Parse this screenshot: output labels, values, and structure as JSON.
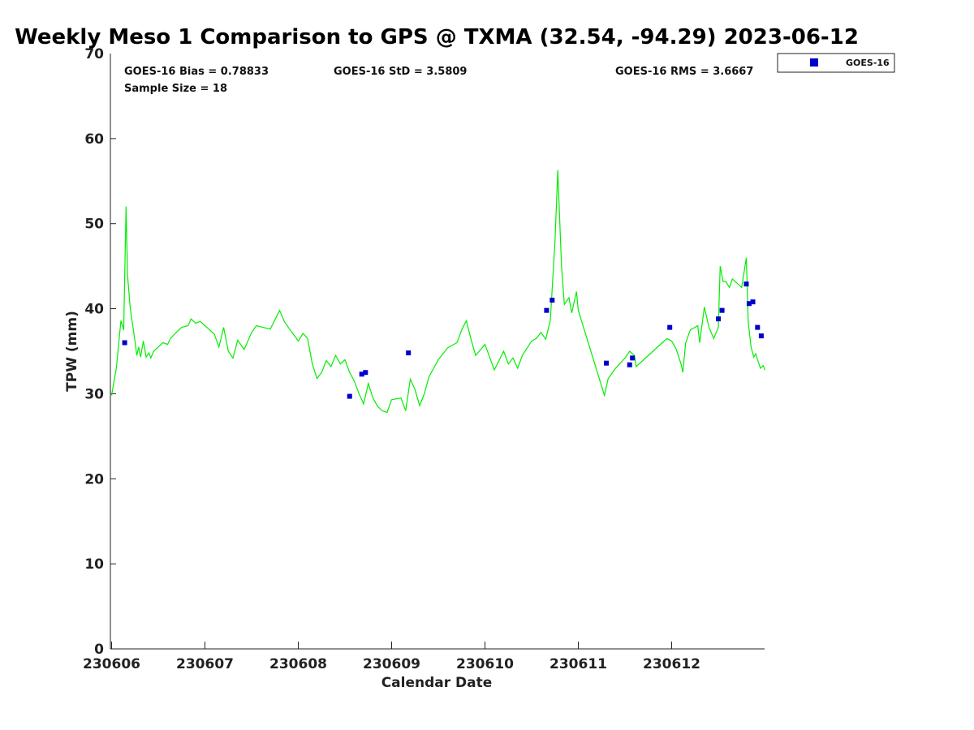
{
  "chart_data": {
    "type": "scatter",
    "title": "Weekly Meso 1 Comparison to GPS @ TXMA (32.54, -94.29) 2023-06-12",
    "xlabel": "Calendar Date",
    "ylabel": "TPW (mm)",
    "xlim": [
      230606,
      230613
    ],
    "ylim": [
      0,
      70
    ],
    "x_ticks": [
      "230606",
      "230607",
      "230608",
      "230609",
      "230610",
      "230611",
      "230612"
    ],
    "y_ticks": [
      "0",
      "10",
      "20",
      "30",
      "40",
      "50",
      "60",
      "70"
    ],
    "grid": false,
    "legend_position": "top-right",
    "stats": {
      "bias": "GOES-16 Bias = 0.78833",
      "std": "GOES-16 StD = 3.5809",
      "rms": "GOES-16 RMS = 3.6667",
      "sample": "Sample Size = 18"
    },
    "series": [
      {
        "name": "GOES-16",
        "kind": "scatter",
        "marker": "square",
        "color": "#0000cc",
        "points": [
          [
            0.14,
            36.0
          ],
          [
            2.55,
            29.7
          ],
          [
            2.68,
            32.3
          ],
          [
            2.72,
            32.5
          ],
          [
            3.18,
            34.8
          ],
          [
            4.66,
            39.8
          ],
          [
            4.72,
            41.0
          ],
          [
            5.3,
            33.6
          ],
          [
            5.55,
            33.4
          ],
          [
            5.58,
            34.2
          ],
          [
            5.98,
            37.8
          ],
          [
            6.5,
            38.8
          ],
          [
            6.54,
            39.8
          ],
          [
            6.8,
            42.9
          ],
          [
            6.83,
            40.6
          ],
          [
            6.87,
            40.8
          ],
          [
            6.92,
            37.8
          ],
          [
            6.96,
            36.8
          ]
        ]
      },
      {
        "kind": "line",
        "color": "#00ee00",
        "points": [
          [
            0.0,
            29.8
          ],
          [
            0.05,
            33.0
          ],
          [
            0.1,
            38.6
          ],
          [
            0.13,
            37.5
          ],
          [
            0.155,
            52.0
          ],
          [
            0.17,
            44.0
          ],
          [
            0.2,
            40.0
          ],
          [
            0.24,
            37.0
          ],
          [
            0.27,
            34.5
          ],
          [
            0.29,
            35.5
          ],
          [
            0.31,
            34.3
          ],
          [
            0.34,
            36.2
          ],
          [
            0.37,
            34.3
          ],
          [
            0.4,
            34.8
          ],
          [
            0.42,
            34.2
          ],
          [
            0.45,
            35.0
          ],
          [
            0.5,
            35.5
          ],
          [
            0.55,
            36.0
          ],
          [
            0.6,
            35.8
          ],
          [
            0.63,
            36.5
          ],
          [
            0.7,
            37.3
          ],
          [
            0.75,
            37.8
          ],
          [
            0.82,
            38.0
          ],
          [
            0.85,
            38.8
          ],
          [
            0.9,
            38.3
          ],
          [
            0.95,
            38.5
          ],
          [
            1.0,
            38.0
          ],
          [
            1.1,
            37.0
          ],
          [
            1.15,
            35.5
          ],
          [
            1.2,
            37.8
          ],
          [
            1.25,
            35.0
          ],
          [
            1.3,
            34.2
          ],
          [
            1.35,
            36.3
          ],
          [
            1.42,
            35.2
          ],
          [
            1.5,
            37.2
          ],
          [
            1.55,
            38.0
          ],
          [
            1.7,
            37.6
          ],
          [
            1.8,
            39.8
          ],
          [
            1.85,
            38.5
          ],
          [
            1.9,
            37.7
          ],
          [
            2.0,
            36.2
          ],
          [
            2.05,
            37.1
          ],
          [
            2.1,
            36.5
          ],
          [
            2.15,
            33.5
          ],
          [
            2.2,
            31.8
          ],
          [
            2.25,
            32.5
          ],
          [
            2.3,
            33.9
          ],
          [
            2.35,
            33.2
          ],
          [
            2.4,
            34.5
          ],
          [
            2.45,
            33.5
          ],
          [
            2.5,
            34.0
          ],
          [
            2.55,
            32.5
          ],
          [
            2.6,
            31.5
          ],
          [
            2.65,
            30.0
          ],
          [
            2.7,
            28.8
          ],
          [
            2.75,
            31.2
          ],
          [
            2.8,
            29.5
          ],
          [
            2.85,
            28.5
          ],
          [
            2.9,
            28.0
          ],
          [
            2.95,
            27.8
          ],
          [
            3.0,
            29.3
          ],
          [
            3.1,
            29.5
          ],
          [
            3.15,
            28.0
          ],
          [
            3.2,
            31.7
          ],
          [
            3.25,
            30.5
          ],
          [
            3.3,
            28.6
          ],
          [
            3.35,
            30.0
          ],
          [
            3.4,
            32.0
          ],
          [
            3.45,
            33.0
          ],
          [
            3.5,
            34.0
          ],
          [
            3.6,
            35.4
          ],
          [
            3.7,
            36.0
          ],
          [
            3.75,
            37.5
          ],
          [
            3.8,
            38.6
          ],
          [
            3.85,
            36.4
          ],
          [
            3.9,
            34.5
          ],
          [
            4.0,
            35.8
          ],
          [
            4.1,
            32.8
          ],
          [
            4.2,
            35.0
          ],
          [
            4.25,
            33.5
          ],
          [
            4.3,
            34.2
          ],
          [
            4.35,
            33.0
          ],
          [
            4.4,
            34.5
          ],
          [
            4.5,
            36.2
          ],
          [
            4.55,
            36.5
          ],
          [
            4.6,
            37.2
          ],
          [
            4.65,
            36.4
          ],
          [
            4.7,
            38.6
          ],
          [
            4.75,
            48.0
          ],
          [
            4.78,
            56.3
          ],
          [
            4.82,
            45.0
          ],
          [
            4.85,
            40.5
          ],
          [
            4.9,
            41.3
          ],
          [
            4.93,
            39.5
          ],
          [
            4.98,
            42.0
          ],
          [
            5.0,
            39.8
          ],
          [
            5.28,
            29.8
          ],
          [
            5.32,
            31.8
          ],
          [
            5.4,
            33.0
          ],
          [
            5.5,
            34.2
          ],
          [
            5.55,
            35.0
          ],
          [
            5.6,
            34.5
          ],
          [
            5.62,
            33.2
          ],
          [
            5.7,
            34.0
          ],
          [
            5.8,
            35.0
          ],
          [
            5.9,
            36.0
          ],
          [
            5.95,
            36.5
          ],
          [
            6.0,
            36.2
          ],
          [
            6.05,
            35.2
          ],
          [
            6.1,
            33.5
          ],
          [
            6.12,
            32.5
          ],
          [
            6.15,
            36.0
          ],
          [
            6.2,
            37.5
          ],
          [
            6.28,
            38.0
          ],
          [
            6.3,
            36.0
          ],
          [
            6.35,
            40.2
          ],
          [
            6.4,
            37.8
          ],
          [
            6.45,
            36.5
          ],
          [
            6.5,
            37.8
          ],
          [
            6.52,
            45.0
          ],
          [
            6.55,
            43.2
          ],
          [
            6.58,
            43.2
          ],
          [
            6.62,
            42.5
          ],
          [
            6.65,
            43.5
          ],
          [
            6.75,
            42.5
          ],
          [
            6.8,
            46.0
          ],
          [
            6.82,
            38.5
          ],
          [
            6.85,
            35.5
          ],
          [
            6.88,
            34.3
          ],
          [
            6.9,
            34.7
          ],
          [
            6.95,
            33.0
          ],
          [
            6.98,
            33.3
          ],
          [
            7.0,
            32.8
          ]
        ]
      }
    ]
  }
}
